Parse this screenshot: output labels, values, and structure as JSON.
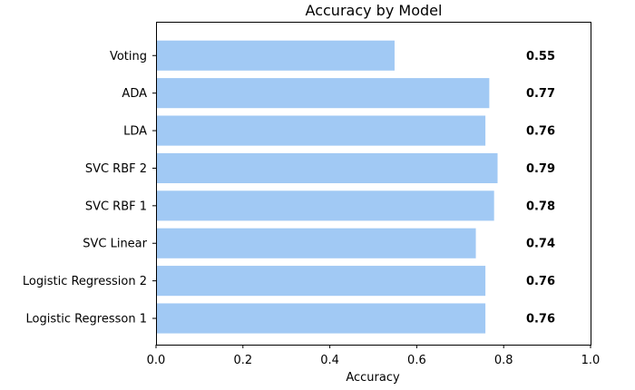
{
  "chart_data": {
    "type": "bar",
    "orientation": "horizontal",
    "title": "Accuracy by Model",
    "xlabel": "Accuracy",
    "ylabel": "",
    "xlim": [
      0.0,
      1.0
    ],
    "x_ticks": [
      0.0,
      0.2,
      0.4,
      0.6,
      0.8,
      1.0
    ],
    "x_tick_labels": [
      "0.0",
      "0.2",
      "0.4",
      "0.6",
      "0.8",
      "1.0"
    ],
    "categories": [
      "Logistic Regresson 1",
      "Logistic Regression 2",
      "SVC Linear",
      "SVC RBF 1",
      "SVC RBF 2",
      "LDA",
      "ADA",
      "Voting"
    ],
    "values": [
      0.758,
      0.758,
      0.736,
      0.778,
      0.786,
      0.758,
      0.767,
      0.549
    ],
    "data_labels": [
      "0.76",
      "0.76",
      "0.74",
      "0.78",
      "0.79",
      "0.76",
      "0.77",
      "0.55"
    ],
    "bar_color": "#a1c9f4",
    "grid": false,
    "legend": "none"
  }
}
